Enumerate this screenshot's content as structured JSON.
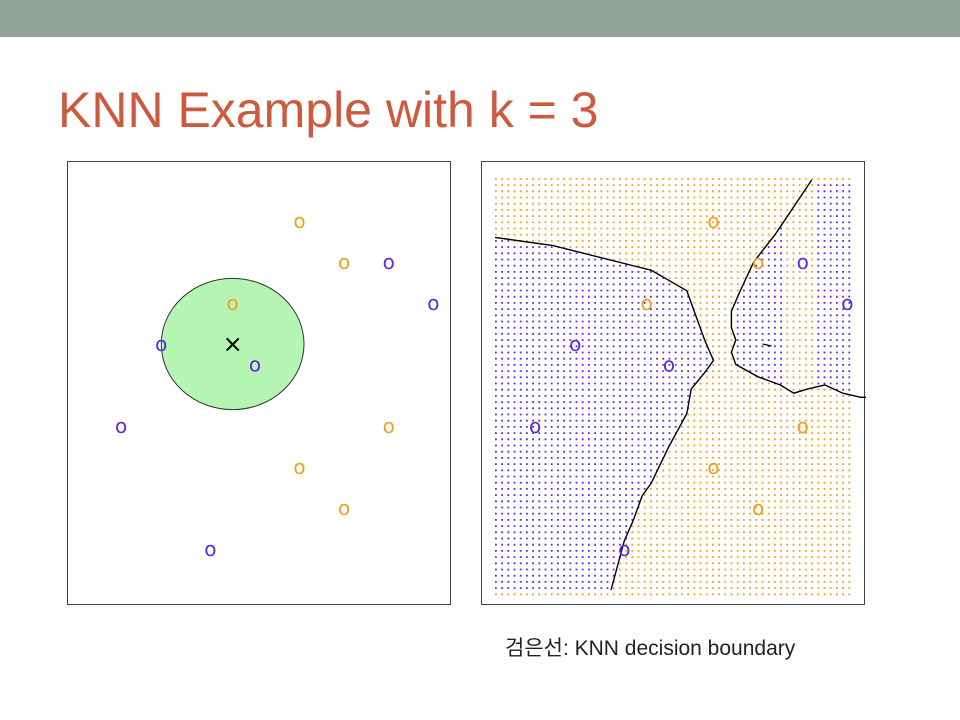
{
  "slide": {
    "title": "KNN Example with k = 3",
    "caption": "검은선: KNN decision boundary"
  },
  "colors": {
    "top_bar": "#94a39a",
    "title": "#cc5a3e",
    "orange": "#f0a020",
    "blue": "#5a2ce0",
    "circle_fill": "#b4f5b4",
    "boundary": "#000000"
  },
  "chart_data": {
    "type": "scatter",
    "marker_glyph": "o",
    "query_glyph": "×",
    "k": 3,
    "xlim": [
      0,
      8.5
    ],
    "ylim": [
      0,
      10
    ],
    "points": [
      {
        "x": 4.9,
        "y": 9.0,
        "class": "orange"
      },
      {
        "x": 5.9,
        "y": 8.0,
        "class": "orange"
      },
      {
        "x": 6.9,
        "y": 8.0,
        "class": "blue"
      },
      {
        "x": 7.9,
        "y": 7.0,
        "class": "blue"
      },
      {
        "x": 3.4,
        "y": 7.0,
        "class": "orange"
      },
      {
        "x": 1.8,
        "y": 6.0,
        "class": "blue"
      },
      {
        "x": 3.9,
        "y": 5.5,
        "class": "blue"
      },
      {
        "x": 0.9,
        "y": 4.0,
        "class": "blue"
      },
      {
        "x": 6.9,
        "y": 4.0,
        "class": "orange"
      },
      {
        "x": 4.9,
        "y": 3.0,
        "class": "orange"
      },
      {
        "x": 5.9,
        "y": 2.0,
        "class": "orange"
      },
      {
        "x": 2.9,
        "y": 1.0,
        "class": "blue"
      }
    ],
    "query": {
      "x": 3.4,
      "y": 6.0
    },
    "neighbor_radius": 1.6,
    "boundary_left": [
      [
        0,
        8.6
      ],
      [
        1.3,
        8.4
      ],
      [
        3.5,
        7.8
      ],
      [
        4.3,
        7.3
      ],
      [
        4.7,
        6.1
      ],
      [
        4.9,
        5.6
      ],
      [
        4.7,
        5.3
      ],
      [
        4.4,
        4.9
      ],
      [
        4.3,
        4.3
      ],
      [
        4.1,
        3.9
      ],
      [
        3.9,
        3.5
      ],
      [
        3.5,
        2.6
      ],
      [
        3.3,
        2.3
      ],
      [
        3.1,
        1.7
      ],
      [
        2.9,
        1.2
      ],
      [
        2.6,
        0
      ]
    ],
    "boundary_right": [
      [
        7.1,
        10
      ],
      [
        6.3,
        8.7
      ],
      [
        5.8,
        8.0
      ],
      [
        5.5,
        7.3
      ],
      [
        5.3,
        6.8
      ],
      [
        5.3,
        6.4
      ],
      [
        5.4,
        6.1
      ],
      [
        5.3,
        5.8
      ],
      [
        5.4,
        5.5
      ],
      [
        5.9,
        5.2
      ],
      [
        6.4,
        5.0
      ],
      [
        6.7,
        4.8
      ],
      [
        7.0,
        4.9
      ],
      [
        7.4,
        5.0
      ],
      [
        7.8,
        4.8
      ],
      [
        8.2,
        4.7
      ],
      [
        8.5,
        4.7
      ]
    ],
    "boundary_island": [
      [
        6.0,
        6.0
      ],
      [
        6.2,
        5.95
      ]
    ]
  }
}
